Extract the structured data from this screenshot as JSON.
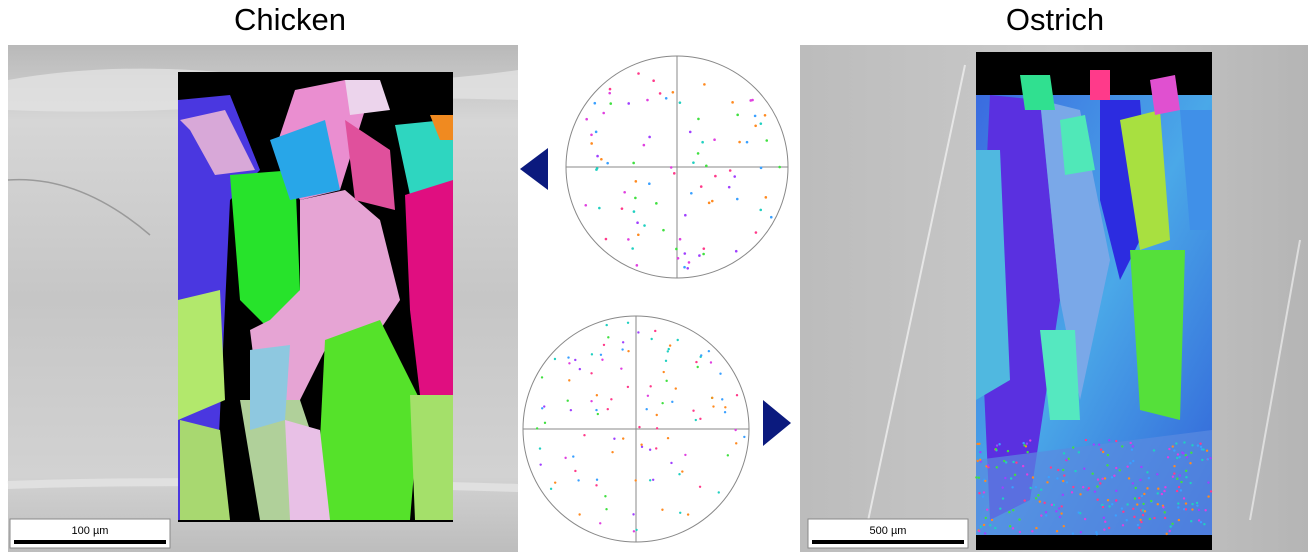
{
  "panels": [
    {
      "title": "Chicken",
      "scale_bar": "100 µm"
    },
    {
      "title": "Ostrich",
      "scale_bar": "500 µm"
    }
  ]
}
